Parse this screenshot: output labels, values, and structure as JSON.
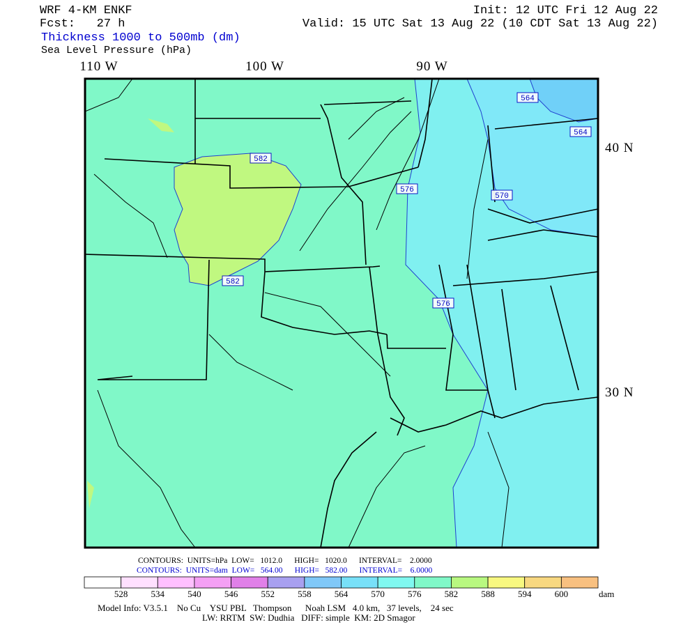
{
  "header": {
    "title": "WRF 4-KM ENKF",
    "forecast": "Fcst:   27 h",
    "thickness_label": "Thickness 1000 to 500mb (dm)",
    "pressure_label": "Sea Level Pressure (hPa)",
    "init": "Init: 12 UTC Fri 12 Aug 22",
    "valid": "Valid: 15 UTC Sat 13 Aug 22 (10 CDT Sat 13 Aug 22)"
  },
  "map": {
    "longitude_labels": [
      "110 W",
      "100 W",
      "90 W"
    ],
    "latitude_labels": [
      "40 N",
      "30 N"
    ],
    "contour_labels": [
      "564",
      "564",
      "582",
      "576",
      "570",
      "582",
      "576"
    ]
  },
  "footer": {
    "pressure_contours": "CONTOURS:  UNITS=hPa  LOW=   1012.0      HIGH=   1020.0      INTERVAL=    2.0000",
    "thickness_contours": "CONTOURS:  UNITS=dam  LOW=   564.00      HIGH=   582.00      INTERVAL=    6.0000",
    "colorbar": {
      "colors": [
        "#ffffff",
        "#ffe0ff",
        "#ffc0ff",
        "#f4a0f4",
        "#e080e8",
        "#a8a0f0",
        "#80c8f8",
        "#78e0f8",
        "#80f8f0",
        "#80f8c8",
        "#b8f880",
        "#f8f880",
        "#f8d880",
        "#f8c080"
      ],
      "labels": [
        "528",
        "534",
        "540",
        "546",
        "552",
        "558",
        "564",
        "570",
        "576",
        "582",
        "588",
        "594",
        "600"
      ],
      "unit": "dam"
    },
    "model_info": "Model Info: V3.5.1    No Cu    YSU PBL   Thompson      Noah LSM   4.0 km,   37 levels,    24 sec",
    "physics": "LW: RRTM  SW: Dudhia   DIFF: simple  KM: 2D Smagor"
  }
}
